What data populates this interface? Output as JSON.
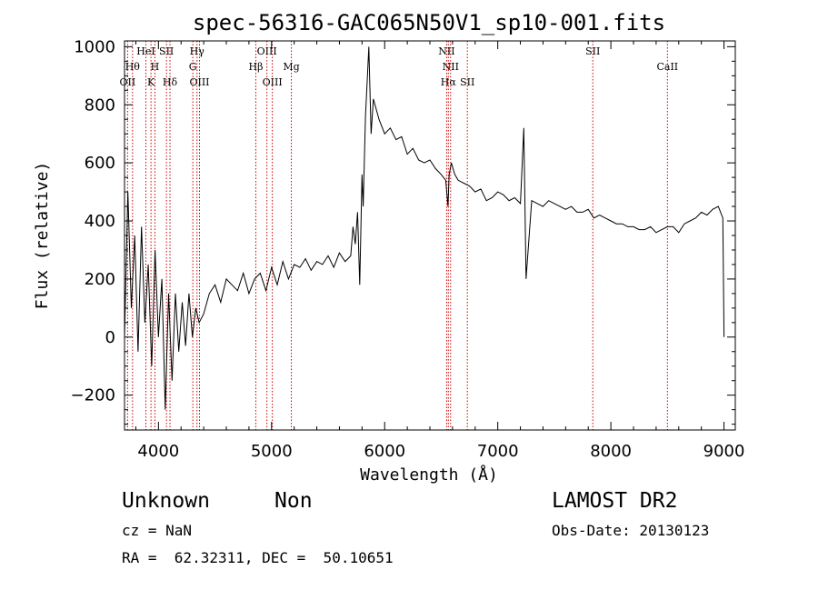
{
  "chart_data": {
    "type": "line",
    "title": "spec-56316-GAC065N50V1_sp10-001.fits",
    "xlabel": "Wavelength (Å)",
    "ylabel": "Flux (relative)",
    "xlim": [
      3700,
      9100
    ],
    "ylim": [
      -320,
      1020
    ],
    "xticks": [
      4000,
      5000,
      6000,
      7000,
      8000,
      9000
    ],
    "yticks": [
      -200,
      0,
      200,
      400,
      600,
      800,
      1000
    ],
    "grid": false,
    "series": [
      {
        "color": "#000000",
        "x": [
          3700,
          3730,
          3760,
          3790,
          3820,
          3850,
          3880,
          3910,
          3940,
          3970,
          4000,
          4030,
          4060,
          4090,
          4120,
          4150,
          4180,
          4210,
          4240,
          4270,
          4300,
          4330,
          4360,
          4400,
          4450,
          4500,
          4550,
          4600,
          4650,
          4700,
          4750,
          4800,
          4850,
          4900,
          4950,
          5000,
          5050,
          5100,
          5150,
          5200,
          5250,
          5300,
          5350,
          5400,
          5450,
          5500,
          5550,
          5600,
          5650,
          5700,
          5720,
          5740,
          5760,
          5780,
          5800,
          5810,
          5830,
          5850,
          5860,
          5880,
          5900,
          5950,
          6000,
          6050,
          6100,
          6150,
          6200,
          6250,
          6300,
          6350,
          6400,
          6450,
          6500,
          6540,
          6560,
          6570,
          6590,
          6620,
          6650,
          6700,
          6750,
          6800,
          6850,
          6900,
          6950,
          7000,
          7050,
          7100,
          7150,
          7200,
          7230,
          7250,
          7300,
          7350,
          7400,
          7450,
          7500,
          7550,
          7600,
          7650,
          7700,
          7750,
          7800,
          7850,
          7900,
          7950,
          8000,
          8050,
          8100,
          8150,
          8200,
          8250,
          8300,
          8350,
          8400,
          8450,
          8500,
          8550,
          8600,
          8650,
          8700,
          8750,
          8800,
          8850,
          8900,
          8950,
          8990,
          9000
        ],
        "y": [
          0,
          500,
          100,
          350,
          -50,
          380,
          50,
          250,
          -100,
          300,
          0,
          200,
          -250,
          150,
          -150,
          150,
          -50,
          120,
          -30,
          150,
          0,
          100,
          50,
          80,
          150,
          180,
          120,
          200,
          180,
          160,
          220,
          150,
          200,
          220,
          160,
          240,
          180,
          260,
          200,
          250,
          240,
          270,
          230,
          260,
          250,
          280,
          240,
          290,
          260,
          280,
          380,
          320,
          430,
          180,
          560,
          450,
          760,
          920,
          1000,
          700,
          820,
          750,
          700,
          720,
          680,
          690,
          630,
          650,
          610,
          600,
          610,
          580,
          560,
          540,
          450,
          560,
          600,
          560,
          540,
          530,
          520,
          500,
          510,
          470,
          480,
          500,
          490,
          470,
          480,
          460,
          720,
          200,
          470,
          460,
          450,
          470,
          460,
          450,
          440,
          450,
          430,
          430,
          440,
          410,
          420,
          410,
          400,
          390,
          390,
          380,
          380,
          370,
          370,
          380,
          360,
          370,
          380,
          380,
          360,
          390,
          400,
          410,
          430,
          420,
          440,
          450,
          410,
          0
        ]
      }
    ],
    "lines": {
      "color": "#cc0000",
      "items": [
        {
          "x": 3727,
          "label": "OII",
          "row": 3
        },
        {
          "x": 3771,
          "label": "Hθ",
          "row": 2
        },
        {
          "x": 3889,
          "label": "HeI",
          "row": 1
        },
        {
          "x": 3934,
          "label": "K",
          "row": 3
        },
        {
          "x": 3969,
          "label": "H",
          "row": 2
        },
        {
          "x": 4071,
          "label": "SII",
          "row": 1
        },
        {
          "x": 4102,
          "label": "Hδ",
          "row": 3
        },
        {
          "x": 4304,
          "label": "G",
          "row": 2
        },
        {
          "x": 4341,
          "label": "Hγ",
          "row": 1
        },
        {
          "x": 4363,
          "label": "OIII",
          "row": 3
        },
        {
          "x": 4861,
          "label": "Hβ",
          "row": 2
        },
        {
          "x": 4959,
          "label": "OIII",
          "row": 1
        },
        {
          "x": 5007,
          "label": "OIII",
          "row": 3
        },
        {
          "x": 5175,
          "label": "Mg",
          "row": 2
        },
        {
          "x": 6548,
          "label": "NII",
          "row": 1
        },
        {
          "x": 6563,
          "label": "Hα",
          "row": 3
        },
        {
          "x": 6583,
          "label": "NII",
          "row": 2
        },
        {
          "x": 6731,
          "label": "SII",
          "row": 3
        },
        {
          "x": 7840,
          "label": "SII",
          "row": 1
        },
        {
          "x": 8500,
          "label": "CaII",
          "row": 2
        }
      ]
    }
  },
  "info": {
    "object_class": "Unknown",
    "subclass": "Non",
    "cz": "cz = NaN",
    "radec": "RA =  62.32311, DEC =  50.10651",
    "survey": "LAMOST DR2",
    "obs_date": "Obs-Date: 20130123"
  }
}
